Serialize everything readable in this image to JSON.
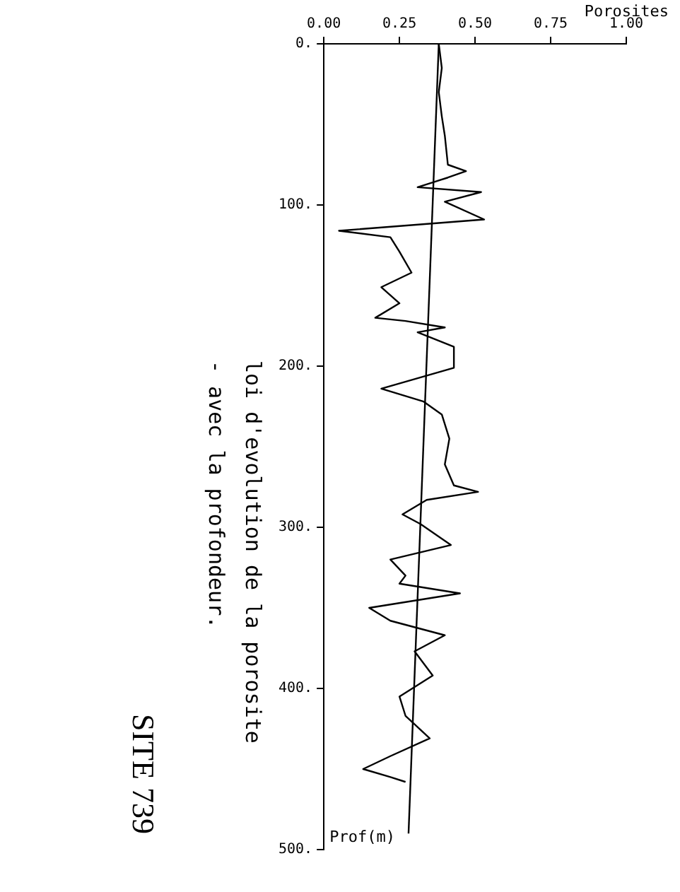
{
  "chart_data": {
    "type": "line",
    "title": "SITE 739",
    "xlabel": "Porosites",
    "ylabel": "Prof(m)",
    "annotations": [
      "loi d'evolution de la porosite",
      "- avec la profondeur."
    ],
    "xlim": [
      0,
      1
    ],
    "ylim": [
      500,
      0
    ],
    "xticks": [
      {
        "value": 0,
        "label": "0.00"
      },
      {
        "value": 0.25,
        "label": "0.25"
      },
      {
        "value": 0.5,
        "label": "0.50"
      },
      {
        "value": 0.75,
        "label": "0.75"
      },
      {
        "value": 1,
        "label": "1.00"
      }
    ],
    "yticks": [
      {
        "value": 0,
        "label": "0."
      },
      {
        "value": 100,
        "label": "100."
      },
      {
        "value": 200,
        "label": "200."
      },
      {
        "value": 300,
        "label": "300."
      },
      {
        "value": 400,
        "label": "400."
      },
      {
        "value": 500,
        "label": "500."
      }
    ],
    "grid": false,
    "legend": false,
    "marker": "none",
    "line_style": "solid",
    "series": [
      {
        "color": "#000000",
        "x": [
          0.38,
          0.39,
          0.38,
          0.39,
          0.4,
          0.41,
          0.47,
          0.41,
          0.31,
          0.52,
          0.4,
          0.53,
          0.05,
          0.22,
          0.25,
          0.29,
          0.19,
          0.25,
          0.17,
          0.27,
          0.4,
          0.31,
          0.43,
          0.43,
          0.19,
          0.33,
          0.39,
          0.415,
          0.4,
          0.43,
          0.51,
          0.34,
          0.26,
          0.32,
          0.42,
          0.22,
          0.27,
          0.25,
          0.45,
          0.15,
          0.22,
          0.4,
          0.3,
          0.36,
          0.25,
          0.27,
          0.35,
          0.22,
          0.13,
          0.22,
          0.27
        ],
        "values": [
          0,
          15,
          30,
          45,
          57,
          75,
          79,
          83,
          89,
          92,
          98,
          109,
          116,
          120,
          129,
          142,
          151,
          161,
          170,
          172,
          176,
          179,
          188,
          201,
          214,
          222,
          230,
          245,
          261,
          274,
          278,
          283,
          292,
          298,
          311,
          320,
          330,
          335,
          341,
          350,
          358,
          367,
          377,
          392,
          405,
          417,
          431,
          442,
          450,
          455,
          458
        ]
      },
      {
        "color": "#000000",
        "x": [
          0.38,
          0.28
        ],
        "values": [
          0,
          490
        ]
      }
    ]
  }
}
